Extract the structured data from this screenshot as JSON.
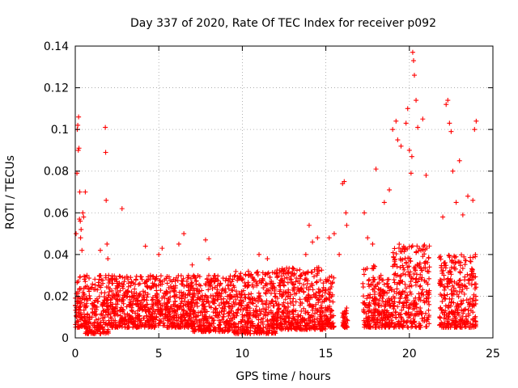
{
  "chart_data": {
    "type": "scatter",
    "title": "Day 337 of 2020, Rate Of TEC Index for receiver p092",
    "xlabel": "GPS time / hours",
    "ylabel": "ROTI / TECUs",
    "xlim": [
      0,
      25
    ],
    "ylim": [
      0,
      0.14
    ],
    "x_ticks": [
      0,
      5,
      10,
      15,
      20,
      25
    ],
    "x_tick_labels": [
      "0",
      "5",
      "10",
      "15",
      "20",
      "25"
    ],
    "y_ticks": [
      0,
      0.02,
      0.04,
      0.06,
      0.08,
      0.1,
      0.12,
      0.14
    ],
    "y_tick_labels": [
      "0",
      "0.02",
      "0.04",
      "0.06",
      "0.08",
      "0.1",
      "0.12",
      "0.14"
    ],
    "grid": true,
    "marker": "plus",
    "color": "#ff0000",
    "series": [
      {
        "name": "ROTI",
        "x": [
          0.05,
          0.1,
          0.12,
          0.15,
          0.18,
          0.2,
          0.22,
          0.25,
          0.27,
          0.3,
          0.32,
          0.35,
          0.4,
          0.45,
          0.5,
          0.6,
          0.7,
          1.2,
          1.5,
          1.8,
          1.82,
          1.85,
          1.9,
          1.95,
          2.0,
          2.2,
          2.5,
          2.8,
          3.0,
          3.5,
          3.8,
          4.0,
          4.2,
          4.5,
          4.8,
          5.0,
          5.2,
          5.5,
          6.0,
          6.2,
          6.5,
          7.0,
          7.5,
          7.8,
          8.0,
          8.5,
          9.0,
          9.5,
          10.0,
          10.5,
          10.8,
          11.0,
          11.5,
          12.0,
          12.2,
          12.5,
          13.0,
          13.5,
          13.8,
          14.0,
          14.2,
          14.5,
          15.0,
          15.2,
          15.5,
          15.8,
          16.0,
          16.1,
          16.2,
          16.25,
          17.3,
          17.5,
          17.8,
          18.0,
          18.5,
          18.8,
          19.0,
          19.2,
          19.3,
          19.5,
          19.8,
          19.9,
          20.0,
          20.1,
          20.15,
          20.2,
          20.25,
          20.3,
          20.4,
          20.5,
          20.8,
          21.0,
          22.0,
          22.2,
          22.3,
          22.4,
          22.5,
          22.6,
          22.8,
          23.0,
          23.2,
          23.5,
          23.8,
          23.9,
          24.0
        ],
        "y": [
          0.05,
          0.079,
          0.1,
          0.102,
          0.09,
          0.106,
          0.091,
          0.057,
          0.07,
          0.056,
          0.048,
          0.052,
          0.042,
          0.06,
          0.058,
          0.07,
          0.03,
          0.018,
          0.042,
          0.101,
          0.089,
          0.066,
          0.045,
          0.038,
          0.03,
          0.028,
          0.025,
          0.062,
          0.022,
          0.02,
          0.02,
          0.028,
          0.044,
          0.03,
          0.025,
          0.04,
          0.043,
          0.022,
          0.025,
          0.045,
          0.05,
          0.035,
          0.025,
          0.047,
          0.038,
          0.025,
          0.022,
          0.02,
          0.028,
          0.03,
          0.018,
          0.04,
          0.038,
          0.02,
          0.025,
          0.025,
          0.026,
          0.03,
          0.04,
          0.054,
          0.046,
          0.048,
          0.028,
          0.048,
          0.05,
          0.04,
          0.074,
          0.075,
          0.06,
          0.054,
          0.06,
          0.048,
          0.045,
          0.081,
          0.065,
          0.071,
          0.1,
          0.104,
          0.095,
          0.092,
          0.103,
          0.11,
          0.09,
          0.079,
          0.087,
          0.137,
          0.133,
          0.126,
          0.114,
          0.101,
          0.105,
          0.078,
          0.058,
          0.112,
          0.114,
          0.103,
          0.099,
          0.08,
          0.065,
          0.085,
          0.059,
          0.068,
          0.066,
          0.1,
          0.104
        ],
        "dense_bands": [
          {
            "x_range": [
              0.0,
              0.6
            ],
            "y_range": [
              0.005,
              0.03
            ]
          },
          {
            "x_range": [
              0.6,
              2.0
            ],
            "y_range": [
              0.002,
              0.03
            ]
          },
          {
            "x_range": [
              2.0,
              4.0
            ],
            "y_range": [
              0.005,
              0.03
            ]
          },
          {
            "x_range": [
              4.0,
              7.0
            ],
            "y_range": [
              0.005,
              0.03
            ]
          },
          {
            "x_range": [
              7.0,
              9.5
            ],
            "y_range": [
              0.003,
              0.03
            ]
          },
          {
            "x_range": [
              9.5,
              12.0
            ],
            "y_range": [
              0.002,
              0.032
            ]
          },
          {
            "x_range": [
              12.0,
              15.0
            ],
            "y_range": [
              0.004,
              0.034
            ]
          },
          {
            "x_range": [
              15.0,
              15.5
            ],
            "y_range": [
              0.005,
              0.03
            ]
          },
          {
            "x_range": [
              16.0,
              16.3
            ],
            "y_range": [
              0.005,
              0.015
            ]
          },
          {
            "x_range": [
              17.2,
              18.0
            ],
            "y_range": [
              0.005,
              0.035
            ]
          },
          {
            "x_range": [
              18.0,
              19.0
            ],
            "y_range": [
              0.005,
              0.03
            ]
          },
          {
            "x_range": [
              19.0,
              21.2
            ],
            "y_range": [
              0.005,
              0.045
            ]
          },
          {
            "x_range": [
              21.8,
              24.0
            ],
            "y_range": [
              0.005,
              0.04
            ]
          }
        ]
      }
    ]
  }
}
